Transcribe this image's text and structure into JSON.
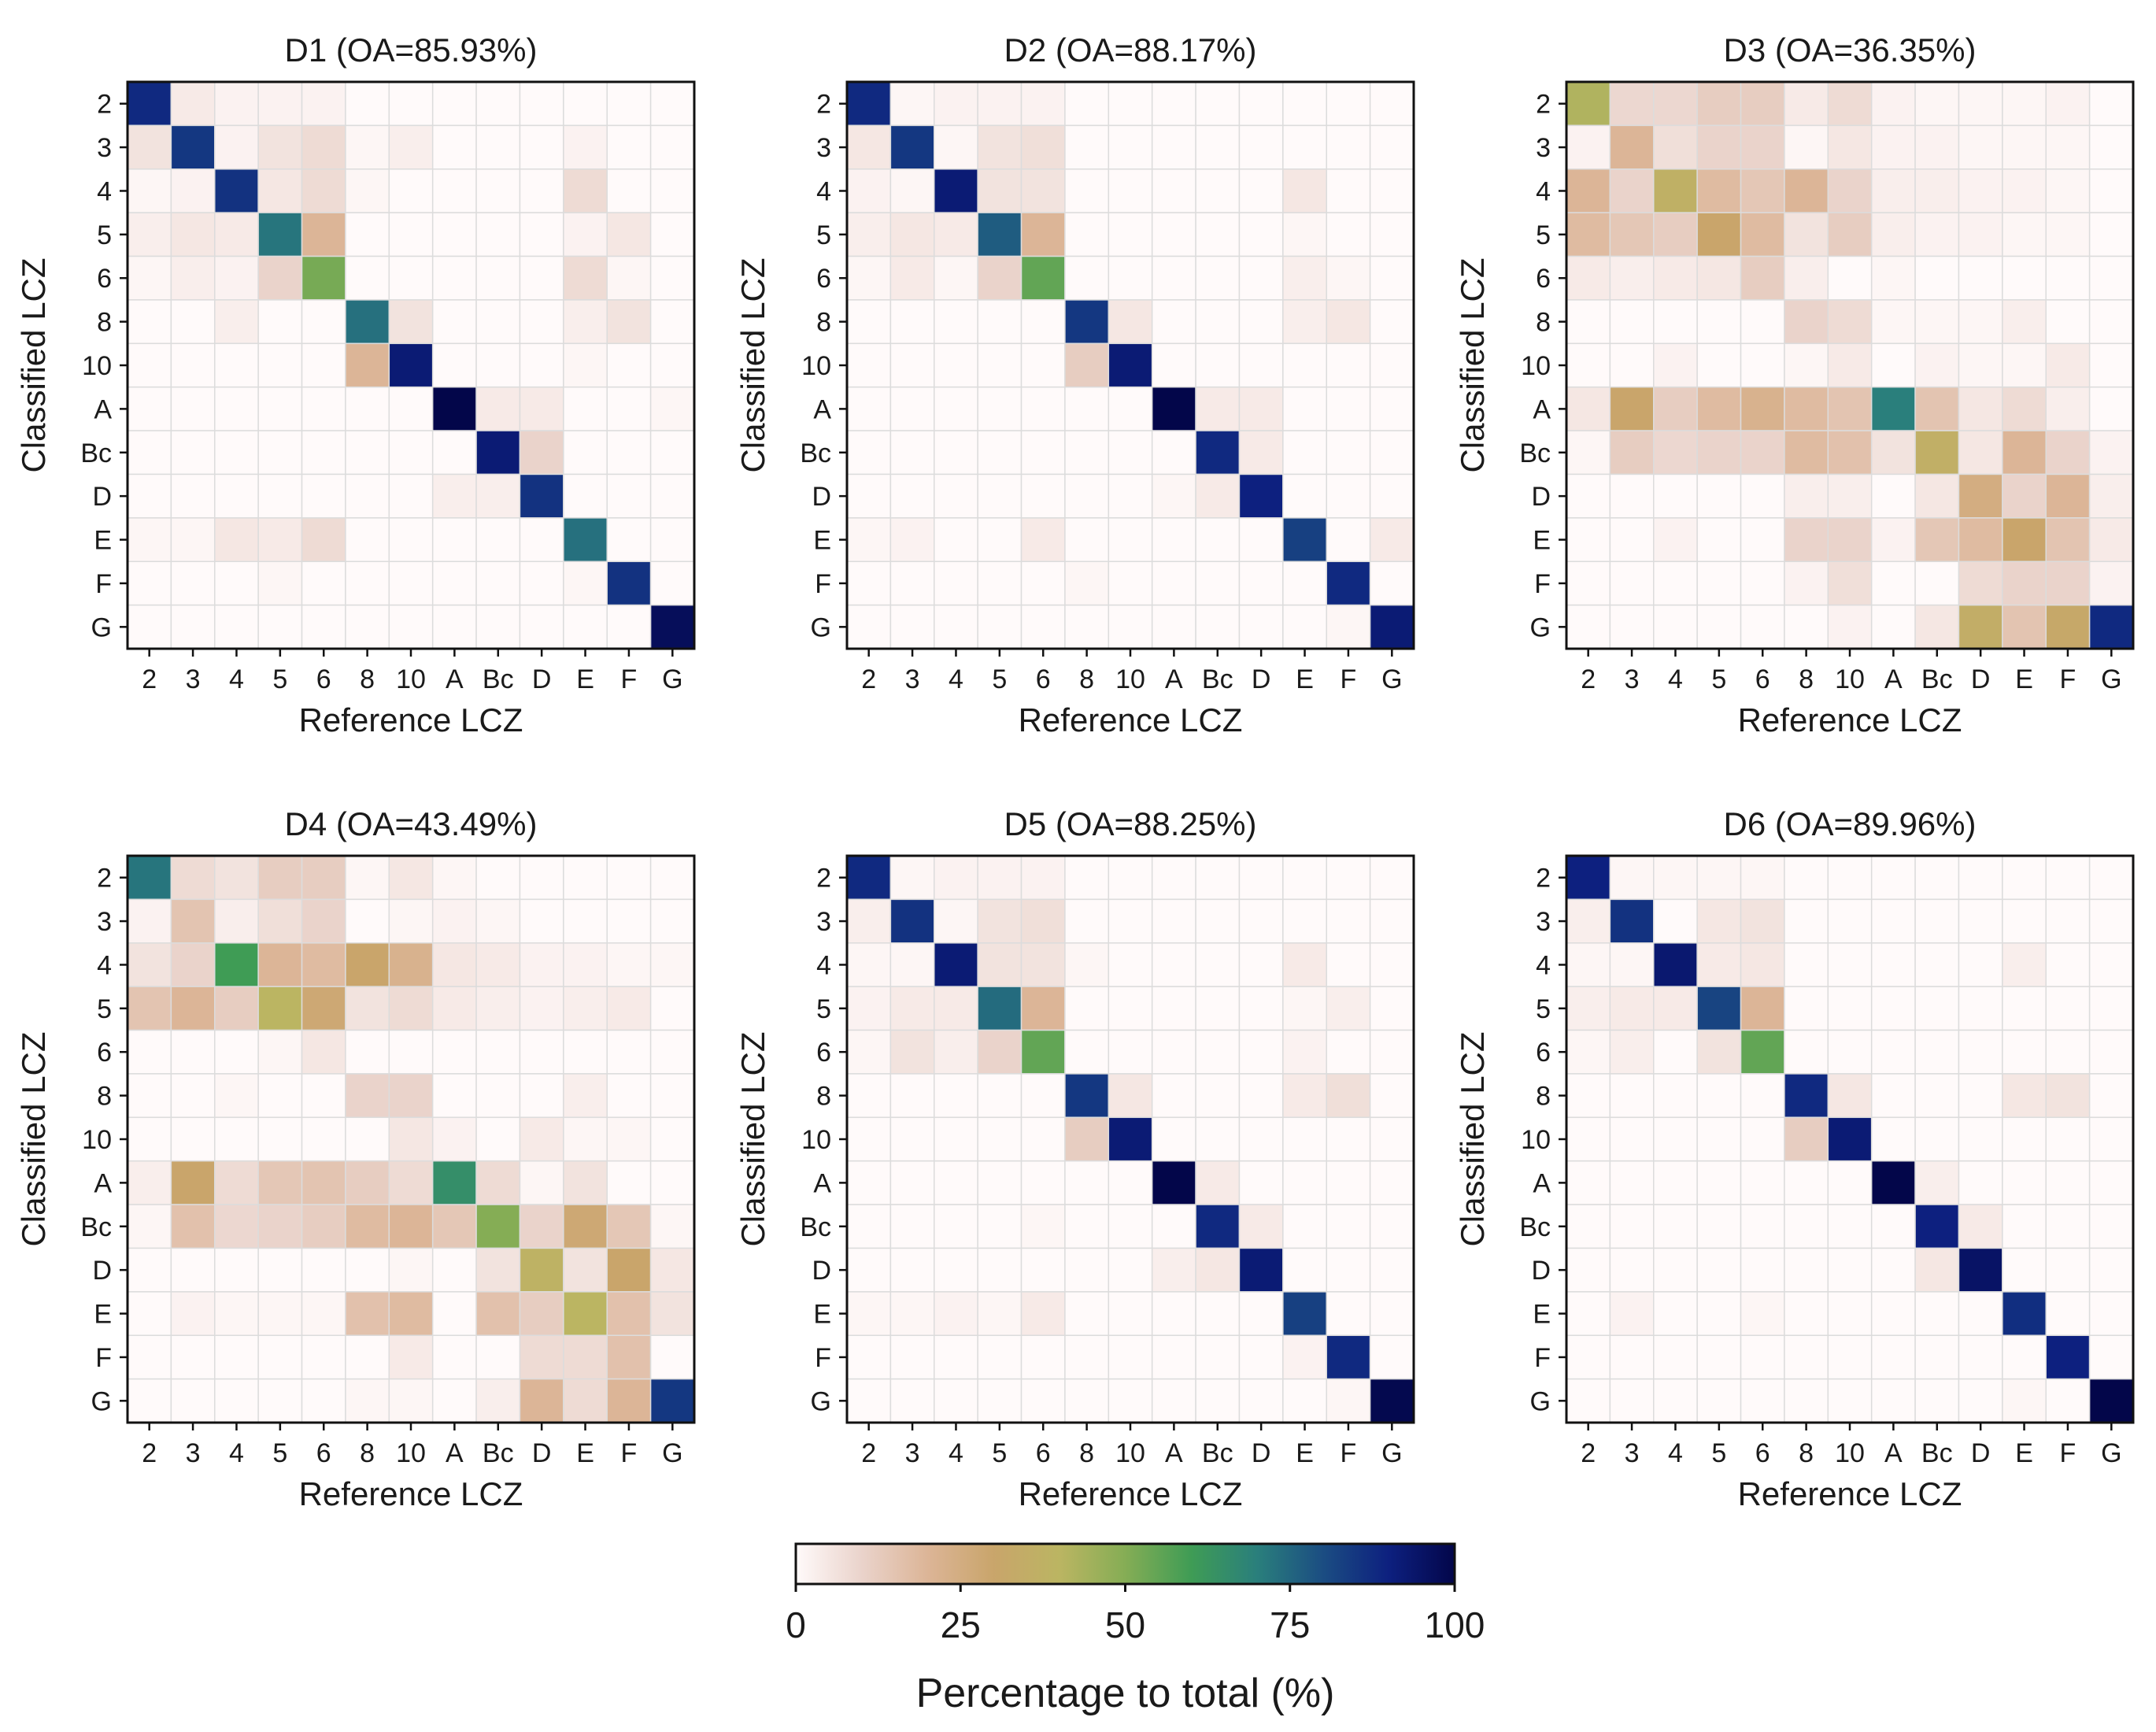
{
  "figure": {
    "row_labels": [
      "2",
      "3",
      "4",
      "5",
      "6",
      "8",
      "10",
      "A",
      "Bc",
      "D",
      "E",
      "F",
      "G"
    ],
    "col_labels": [
      "2",
      "3",
      "4",
      "5",
      "6",
      "8",
      "10",
      "A",
      "Bc",
      "D",
      "E",
      "F",
      "G"
    ],
    "xlabel": "Reference LCZ",
    "ylabel": "Classified LCZ"
  },
  "colorbar": {
    "label": "Percentage to total (%)",
    "min": 0,
    "max": 100,
    "ticks": [
      "0",
      "25",
      "50",
      "75",
      "100"
    ],
    "colors": [
      "#fffafa",
      "#ead3cb",
      "#dcb597",
      "#c9a56b",
      "#bbb562",
      "#85ad55",
      "#3f9c55",
      "#2a7f7c",
      "#1b4d82",
      "#0d207f",
      "#03064a"
    ]
  },
  "chart_data": [
    {
      "type": "heatmap",
      "title": "D1 (OA=85.93%)",
      "xlabel": "Reference LCZ",
      "ylabel": "Classified LCZ",
      "values": [
        [
          88,
          4,
          2,
          2,
          2,
          0,
          0,
          0,
          0,
          0,
          0,
          0,
          0
        ],
        [
          6,
          85,
          2,
          6,
          8,
          1,
          3,
          0,
          0,
          0,
          2,
          0,
          0
        ],
        [
          1,
          2,
          86,
          5,
          8,
          1,
          0,
          0,
          0,
          0,
          8,
          0,
          0
        ],
        [
          3,
          5,
          4,
          72,
          20,
          0,
          0,
          0,
          0,
          0,
          2,
          5,
          0
        ],
        [
          1,
          3,
          2,
          10,
          52,
          0,
          0,
          0,
          0,
          0,
          8,
          1,
          0
        ],
        [
          0,
          0,
          3,
          0,
          0,
          73,
          6,
          0,
          0,
          0,
          3,
          6,
          0
        ],
        [
          0,
          0,
          0,
          0,
          0,
          20,
          92,
          0,
          0,
          0,
          1,
          0,
          0
        ],
        [
          0,
          0,
          0,
          0,
          0,
          0,
          0,
          100,
          4,
          4,
          0,
          0,
          1
        ],
        [
          0,
          0,
          0,
          0,
          0,
          0,
          0,
          0,
          92,
          10,
          0,
          0,
          0
        ],
        [
          0,
          0,
          0,
          0,
          0,
          0,
          0,
          3,
          3,
          86,
          0,
          0,
          0
        ],
        [
          1,
          1,
          5,
          4,
          8,
          0,
          0,
          0,
          0,
          0,
          73,
          0,
          0
        ],
        [
          0,
          0,
          0,
          1,
          0,
          0,
          0,
          0,
          0,
          0,
          1,
          86,
          0
        ],
        [
          0,
          0,
          0,
          0,
          0,
          0,
          0,
          0,
          0,
          0,
          0,
          0,
          97
        ]
      ]
    },
    {
      "type": "heatmap",
      "title": "D2 (OA=88.17%)",
      "xlabel": "Reference LCZ",
      "ylabel": "Classified LCZ",
      "values": [
        [
          88,
          1,
          2,
          2,
          2,
          0,
          0,
          0,
          0,
          0,
          0,
          0,
          0
        ],
        [
          5,
          85,
          1,
          6,
          7,
          0,
          0,
          0,
          0,
          0,
          0,
          0,
          0
        ],
        [
          2,
          1,
          92,
          6,
          6,
          0,
          0,
          0,
          0,
          0,
          5,
          0,
          0
        ],
        [
          3,
          5,
          4,
          77,
          20,
          0,
          0,
          0,
          0,
          0,
          1,
          0,
          0
        ],
        [
          1,
          4,
          1,
          10,
          55,
          0,
          0,
          0,
          0,
          0,
          3,
          1,
          0
        ],
        [
          0,
          0,
          0,
          0,
          0,
          85,
          5,
          0,
          0,
          0,
          3,
          5,
          0
        ],
        [
          0,
          0,
          0,
          0,
          0,
          12,
          92,
          0,
          0,
          0,
          0,
          0,
          0
        ],
        [
          0,
          0,
          0,
          0,
          0,
          0,
          0,
          100,
          4,
          4,
          0,
          0,
          0
        ],
        [
          0,
          0,
          0,
          0,
          0,
          0,
          0,
          0,
          88,
          4,
          0,
          0,
          0
        ],
        [
          0,
          0,
          0,
          0,
          0,
          0,
          0,
          1,
          4,
          90,
          0,
          0,
          0
        ],
        [
          1,
          2,
          0,
          0,
          4,
          0,
          0,
          0,
          0,
          0,
          83,
          0,
          4
        ],
        [
          0,
          0,
          0,
          0,
          0,
          1,
          0,
          0,
          0,
          0,
          0,
          88,
          0
        ],
        [
          0,
          0,
          0,
          0,
          0,
          0,
          0,
          0,
          0,
          0,
          0,
          1,
          92
        ]
      ]
    },
    {
      "type": "heatmap",
      "title": "D3 (OA=36.35%)",
      "xlabel": "Reference LCZ",
      "ylabel": "Classified LCZ",
      "values": [
        [
          42,
          9,
          9,
          12,
          12,
          4,
          8,
          2,
          1,
          1,
          1,
          2,
          0
        ],
        [
          2,
          20,
          7,
          10,
          10,
          1,
          5,
          2,
          2,
          1,
          1,
          1,
          0
        ],
        [
          20,
          10,
          37,
          18,
          14,
          20,
          10,
          3,
          3,
          2,
          2,
          1,
          0
        ],
        [
          18,
          14,
          12,
          30,
          18,
          6,
          12,
          3,
          2,
          2,
          1,
          1,
          0
        ],
        [
          4,
          3,
          4,
          5,
          12,
          3,
          0,
          1,
          0,
          0,
          0,
          0,
          0
        ],
        [
          0,
          0,
          0,
          0,
          0,
          10,
          8,
          1,
          1,
          1,
          3,
          0,
          0
        ],
        [
          0,
          0,
          2,
          0,
          0,
          1,
          4,
          0,
          2,
          1,
          1,
          4,
          0
        ],
        [
          5,
          30,
          12,
          18,
          22,
          18,
          15,
          70,
          15,
          5,
          8,
          3,
          0
        ],
        [
          1,
          12,
          9,
          10,
          10,
          18,
          16,
          6,
          36,
          5,
          20,
          10,
          2
        ],
        [
          0,
          0,
          0,
          0,
          0,
          3,
          3,
          0,
          5,
          25,
          10,
          20,
          3
        ],
        [
          0,
          0,
          2,
          0,
          0,
          10,
          10,
          2,
          14,
          18,
          30,
          15,
          4
        ],
        [
          0,
          0,
          0,
          0,
          0,
          2,
          7,
          0,
          0,
          8,
          10,
          10,
          2
        ],
        [
          0,
          0,
          0,
          0,
          0,
          0,
          2,
          0,
          5,
          35,
          15,
          32,
          88
        ]
      ]
    },
    {
      "type": "heatmap",
      "title": "D4 (OA=43.49%)",
      "xlabel": "Reference LCZ",
      "ylabel": "Classified LCZ",
      "values": [
        [
          72,
          8,
          6,
          12,
          12,
          1,
          5,
          1,
          0,
          0,
          0,
          0,
          0
        ],
        [
          2,
          15,
          3,
          7,
          10,
          0,
          1,
          2,
          1,
          0,
          0,
          0,
          0
        ],
        [
          6,
          10,
          60,
          20,
          18,
          30,
          22,
          5,
          4,
          2,
          2,
          1,
          1
        ],
        [
          15,
          20,
          12,
          40,
          28,
          6,
          8,
          4,
          3,
          2,
          3,
          4,
          0
        ],
        [
          0,
          0,
          0,
          1,
          5,
          0,
          0,
          0,
          0,
          0,
          0,
          0,
          0
        ],
        [
          0,
          0,
          1,
          0,
          0,
          10,
          10,
          0,
          0,
          0,
          3,
          0,
          0
        ],
        [
          0,
          0,
          0,
          0,
          0,
          0,
          5,
          2,
          0,
          4,
          1,
          1,
          0
        ],
        [
          3,
          30,
          8,
          14,
          15,
          12,
          8,
          65,
          8,
          1,
          6,
          0,
          0
        ],
        [
          1,
          16,
          9,
          10,
          12,
          18,
          20,
          14,
          50,
          10,
          28,
          14,
          1
        ],
        [
          0,
          0,
          0,
          0,
          0,
          0,
          1,
          0,
          6,
          38,
          6,
          30,
          5
        ],
        [
          0,
          2,
          1,
          1,
          1,
          16,
          18,
          0,
          16,
          12,
          40,
          16,
          6
        ],
        [
          0,
          0,
          0,
          0,
          0,
          0,
          4,
          0,
          0,
          8,
          8,
          16,
          0
        ],
        [
          0,
          0,
          0,
          0,
          0,
          1,
          1,
          0,
          3,
          20,
          8,
          20,
          85
        ]
      ]
    },
    {
      "type": "heatmap",
      "title": "D5 (OA=88.25%)",
      "xlabel": "Reference LCZ",
      "ylabel": "Classified LCZ",
      "values": [
        [
          88,
          1,
          2,
          2,
          2,
          0,
          0,
          0,
          0,
          0,
          0,
          0,
          0
        ],
        [
          3,
          86,
          1,
          6,
          7,
          0,
          0,
          0,
          0,
          0,
          0,
          0,
          0
        ],
        [
          1,
          1,
          92,
          6,
          6,
          1,
          0,
          0,
          0,
          0,
          4,
          0,
          0
        ],
        [
          2,
          4,
          4,
          74,
          20,
          0,
          0,
          0,
          0,
          0,
          1,
          3,
          0
        ],
        [
          1,
          6,
          3,
          10,
          55,
          0,
          0,
          0,
          0,
          0,
          2,
          0,
          0
        ],
        [
          0,
          0,
          0,
          0,
          0,
          85,
          5,
          0,
          0,
          0,
          4,
          7,
          0
        ],
        [
          0,
          0,
          0,
          0,
          0,
          12,
          92,
          0,
          0,
          0,
          0,
          0,
          0
        ],
        [
          0,
          0,
          0,
          0,
          0,
          0,
          0,
          100,
          4,
          0,
          0,
          0,
          0
        ],
        [
          0,
          0,
          0,
          0,
          1,
          0,
          0,
          0,
          88,
          4,
          0,
          0,
          0
        ],
        [
          0,
          0,
          0,
          0,
          0,
          0,
          0,
          3,
          5,
          92,
          0,
          0,
          0
        ],
        [
          1,
          1,
          2,
          1,
          4,
          0,
          0,
          0,
          0,
          0,
          83,
          0,
          0
        ],
        [
          0,
          0,
          0,
          0,
          0,
          0,
          0,
          0,
          0,
          0,
          2,
          88,
          0
        ],
        [
          0,
          0,
          0,
          0,
          0,
          0,
          0,
          0,
          0,
          0,
          0,
          1,
          99
        ]
      ]
    },
    {
      "type": "heatmap",
      "title": "D6 (OA=89.96%)",
      "xlabel": "Reference LCZ",
      "ylabel": "Classified LCZ",
      "values": [
        [
          90,
          1,
          1,
          1,
          1,
          0,
          0,
          0,
          0,
          0,
          0,
          0,
          0
        ],
        [
          3,
          86,
          0,
          5,
          6,
          0,
          0,
          0,
          0,
          0,
          0,
          0,
          0
        ],
        [
          1,
          1,
          93,
          4,
          5,
          0,
          0,
          0,
          0,
          0,
          3,
          0,
          0
        ],
        [
          3,
          4,
          4,
          82,
          20,
          0,
          0,
          0,
          0,
          0,
          0,
          0,
          0
        ],
        [
          1,
          3,
          0,
          6,
          55,
          0,
          0,
          0,
          0,
          0,
          0,
          0,
          0
        ],
        [
          0,
          0,
          0,
          0,
          0,
          88,
          5,
          0,
          0,
          0,
          5,
          6,
          0
        ],
        [
          0,
          0,
          0,
          0,
          0,
          12,
          92,
          0,
          0,
          0,
          0,
          0,
          0
        ],
        [
          0,
          0,
          0,
          0,
          0,
          0,
          0,
          100,
          3,
          0,
          0,
          0,
          0
        ],
        [
          0,
          0,
          0,
          0,
          0,
          0,
          0,
          0,
          90,
          4,
          0,
          0,
          0
        ],
        [
          0,
          0,
          0,
          0,
          0,
          0,
          0,
          0,
          5,
          95,
          0,
          0,
          0
        ],
        [
          0,
          2,
          0,
          0,
          1,
          0,
          0,
          0,
          0,
          0,
          87,
          0,
          0
        ],
        [
          0,
          0,
          0,
          0,
          0,
          0,
          0,
          0,
          0,
          0,
          0,
          90,
          0
        ],
        [
          0,
          0,
          0,
          0,
          0,
          0,
          0,
          0,
          0,
          0,
          1,
          0,
          100
        ]
      ]
    }
  ]
}
